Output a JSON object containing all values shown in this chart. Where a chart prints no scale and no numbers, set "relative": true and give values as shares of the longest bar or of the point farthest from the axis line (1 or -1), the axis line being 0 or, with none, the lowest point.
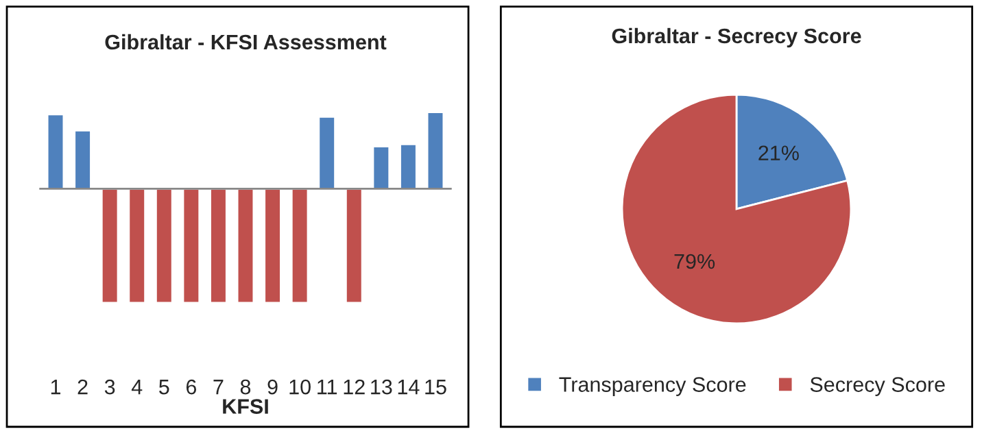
{
  "chart_data": [
    {
      "type": "bar",
      "title": "Gibraltar - KFSI Assessment",
      "xlabel": "KFSI",
      "relative": true,
      "categories": [
        "1",
        "2",
        "3",
        "4",
        "5",
        "6",
        "7",
        "8",
        "9",
        "10",
        "11",
        "12",
        "13",
        "14",
        "15"
      ],
      "values": [
        0.65,
        0.51,
        -1,
        -1,
        -1,
        -1,
        -1,
        -1,
        -1,
        -1,
        0.63,
        -1,
        0.37,
        0.39,
        0.67
      ],
      "colors": [
        "#4f81bd",
        "#4f81bd",
        "#c0504d",
        "#c0504d",
        "#c0504d",
        "#c0504d",
        "#c0504d",
        "#c0504d",
        "#c0504d",
        "#c0504d",
        "#4f81bd",
        "#c0504d",
        "#4f81bd",
        "#4f81bd",
        "#4f81bd"
      ],
      "grid": false
    },
    {
      "type": "pie",
      "title": "Gibraltar - Secrecy Score",
      "categories": [
        "Transparency Score",
        "Secrecy Score"
      ],
      "values": [
        21,
        79
      ],
      "colors": [
        "#4f81bd",
        "#c0504d"
      ],
      "value_labels": [
        "21%",
        "79%"
      ],
      "legend": "bottom"
    }
  ]
}
